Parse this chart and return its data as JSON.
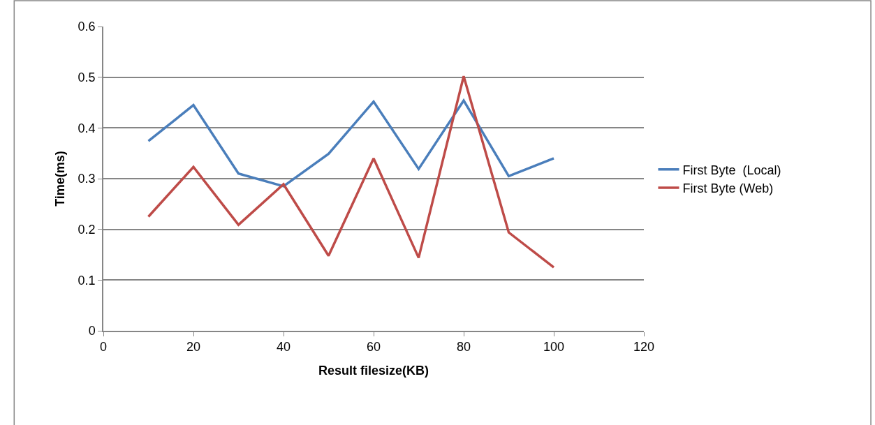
{
  "chart_data": {
    "type": "line",
    "xlabel": "Result filesize(KB)",
    "ylabel": "Time(ms)",
    "x": [
      10,
      20,
      30,
      40,
      50,
      60,
      70,
      80,
      90,
      100
    ],
    "series": [
      {
        "name": "First Byte  (Local)",
        "color": "#4a7ebb",
        "values": [
          0.374,
          0.445,
          0.31,
          0.285,
          0.349,
          0.452,
          0.319,
          0.454,
          0.305,
          0.34
        ]
      },
      {
        "name": "First Byte (Web)",
        "color": "#be4b48",
        "values": [
          0.225,
          0.323,
          0.209,
          0.289,
          0.148,
          0.34,
          0.144,
          0.502,
          0.194,
          0.125
        ]
      }
    ],
    "xlim": [
      0,
      120
    ],
    "xticks": [
      0,
      20,
      40,
      60,
      80,
      100,
      120
    ],
    "ylim": [
      0,
      0.6
    ],
    "yticks": [
      0,
      0.1,
      0.2,
      0.3,
      0.4,
      0.5,
      0.6
    ],
    "grid": "y",
    "legend": "right",
    "marker": "none",
    "line_style": "solid"
  }
}
